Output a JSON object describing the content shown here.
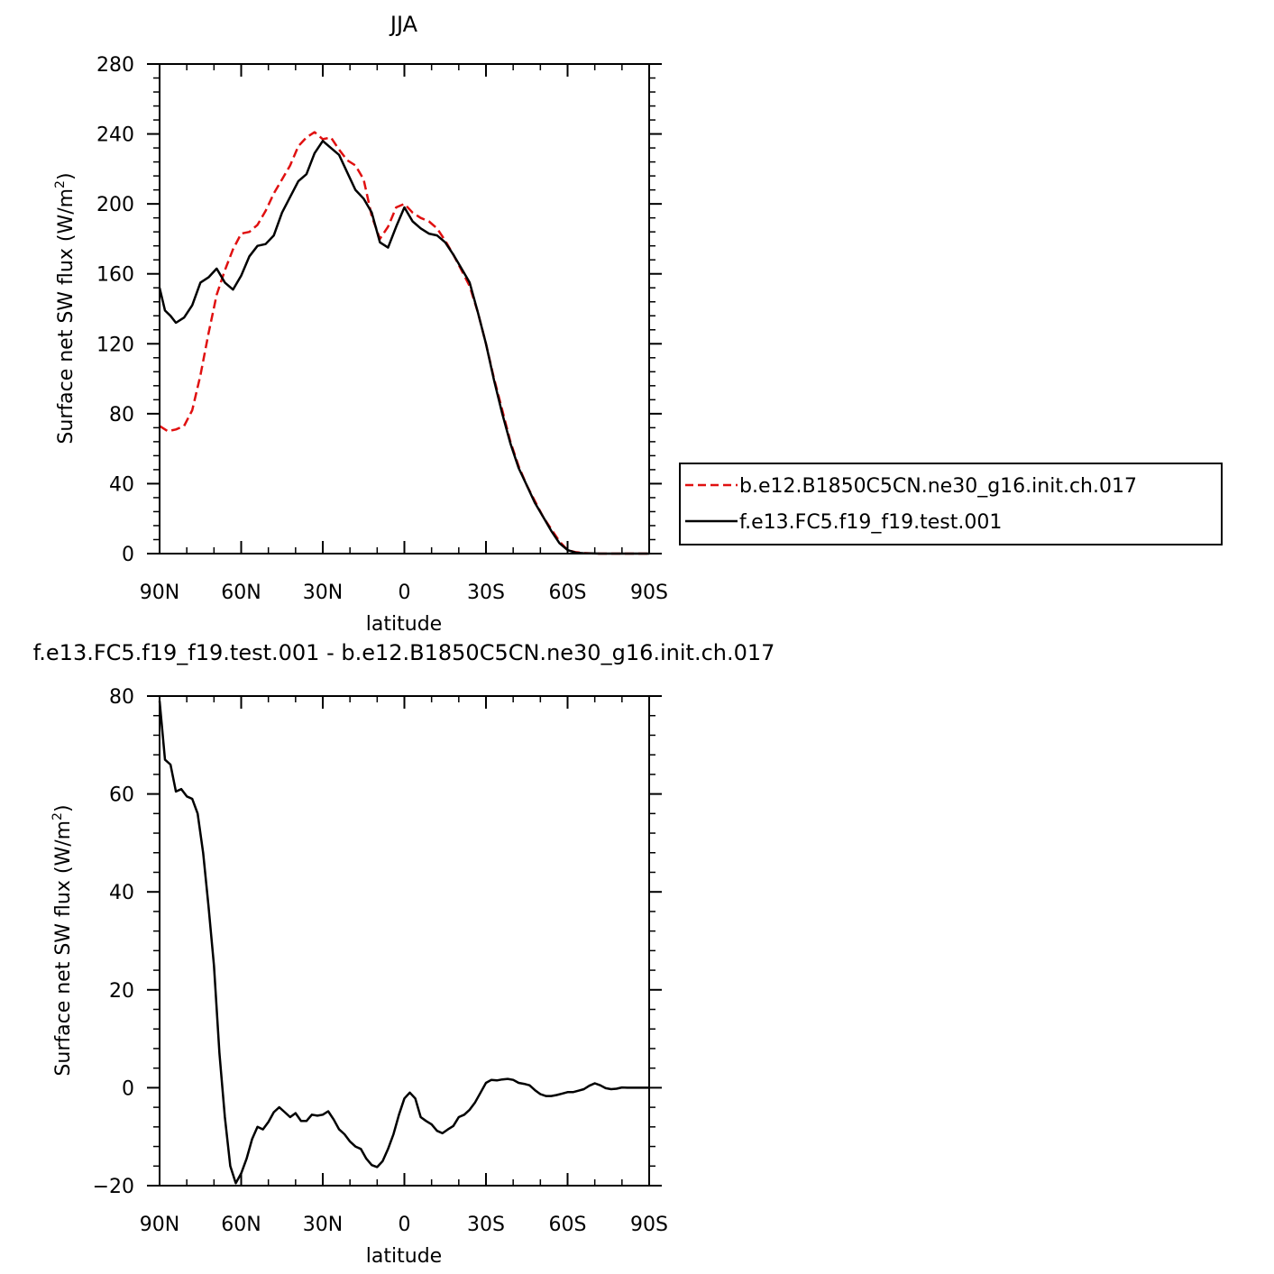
{
  "chart_data": [
    {
      "type": "line",
      "title": "JJA",
      "xlabel": "latitude",
      "ylabel_main": "Surface net SW flux (W/m",
      "ylabel_sup": "2",
      "ylabel_close": ")",
      "xlim": [
        -90,
        90
      ],
      "ylim": [
        0,
        280
      ],
      "x_ticks": [
        -90,
        -60,
        -30,
        0,
        30,
        60,
        90
      ],
      "x_tick_labels": [
        "90N",
        "60N",
        "30N",
        "0",
        "30S",
        "60S",
        "90S"
      ],
      "y_ticks": [
        0,
        40,
        80,
        120,
        160,
        200,
        240,
        280
      ],
      "y_tick_labels": [
        "0",
        "40",
        "80",
        "120",
        "160",
        "200",
        "240",
        "280"
      ],
      "grid": false,
      "legend_position": "right",
      "series": [
        {
          "name": "b.e12.B1850C5CN.ne30_g16.init.ch.017",
          "color": "#e01010",
          "style": "dashed",
          "x": [
            -90,
            -87,
            -84,
            -81,
            -78,
            -75,
            -72,
            -69,
            -66,
            -63,
            -60,
            -57,
            -54,
            -51,
            -48,
            -45,
            -42,
            -39,
            -36,
            -33,
            -30,
            -27,
            -24,
            -21,
            -18,
            -15,
            -12,
            -9,
            -6,
            -3,
            0,
            3,
            6,
            9,
            12,
            15,
            18,
            21,
            24,
            27,
            30,
            33,
            36,
            39,
            42,
            45,
            48,
            51,
            54,
            57,
            60,
            63,
            66,
            69,
            72,
            75,
            78,
            81,
            84,
            87,
            90
          ],
          "y": [
            73,
            70,
            71,
            73,
            82,
            102,
            126,
            148,
            162,
            174,
            183,
            184,
            188,
            196,
            206,
            214,
            222,
            233,
            238,
            241,
            237,
            238,
            231,
            225,
            222,
            214,
            193,
            180,
            187,
            198,
            200,
            195,
            192,
            190,
            186,
            179,
            171,
            162,
            153,
            138,
            120,
            100,
            82,
            64,
            50,
            39,
            30,
            21,
            14,
            7,
            2,
            0.8,
            0.3,
            0.1,
            0,
            0,
            0,
            0,
            0,
            0,
            0
          ]
        },
        {
          "name": "f.e13.FC5.f19_f19.test.001",
          "color": "#000000",
          "style": "solid",
          "x": [
            -90,
            -88,
            -86,
            -84,
            -81,
            -78,
            -75,
            -72,
            -69,
            -66,
            -63,
            -60,
            -57,
            -54,
            -51,
            -48,
            -45,
            -42,
            -39,
            -36,
            -33,
            -30,
            -27,
            -24,
            -21,
            -18,
            -15,
            -12,
            -9,
            -6,
            -3,
            0,
            3,
            6,
            9,
            12,
            15,
            18,
            21,
            24,
            27,
            30,
            33,
            36,
            39,
            42,
            45,
            48,
            51,
            54,
            57,
            60,
            63,
            66,
            69,
            72,
            75,
            78,
            81,
            84,
            87,
            90
          ],
          "y": [
            152,
            139,
            136,
            132,
            135,
            142,
            155,
            158,
            163,
            155,
            151,
            159,
            170,
            176,
            177,
            182,
            195,
            204,
            213,
            217,
            229,
            236,
            232,
            228,
            218,
            208,
            203,
            195,
            178,
            175,
            187,
            198,
            190,
            186,
            183,
            182,
            178,
            171,
            163,
            155,
            138,
            120,
            99,
            80,
            63,
            49,
            39,
            29,
            21,
            13,
            6,
            2,
            0.5,
            0.2,
            0.1,
            0,
            0,
            0,
            0,
            0,
            0,
            0
          ]
        }
      ]
    },
    {
      "type": "line",
      "title": "f.e13.FC5.f19_f19.test.001 - b.e12.B1850C5CN.ne30_g16.init.ch.017",
      "xlabel": "latitude",
      "ylabel_main": "Surface net SW flux (W/m",
      "ylabel_sup": "2",
      "ylabel_close": ")",
      "xlim": [
        -90,
        90
      ],
      "ylim": [
        -20,
        80
      ],
      "x_ticks": [
        -90,
        -60,
        -30,
        0,
        30,
        60,
        90
      ],
      "x_tick_labels": [
        "90N",
        "60N",
        "30N",
        "0",
        "30S",
        "60S",
        "90S"
      ],
      "y_ticks": [
        -20,
        0,
        20,
        40,
        60,
        80
      ],
      "y_tick_labels": [
        "−20",
        "0",
        "20",
        "40",
        "60",
        "80"
      ],
      "grid": false,
      "series": [
        {
          "color": "#000000",
          "style": "solid",
          "x": [
            -90,
            -88,
            -86,
            -84,
            -82,
            -80,
            -78,
            -76,
            -74,
            -72,
            -70,
            -68,
            -66,
            -64,
            -62,
            -60,
            -58,
            -56,
            -54,
            -52,
            -50,
            -48,
            -46,
            -44,
            -42,
            -40,
            -38,
            -36,
            -34,
            -32,
            -30,
            -28,
            -26,
            -24,
            -22,
            -20,
            -18,
            -16,
            -14,
            -12,
            -10,
            -8,
            -6,
            -4,
            -2,
            0,
            2,
            4,
            6,
            8,
            10,
            12,
            14,
            16,
            18,
            20,
            22,
            24,
            26,
            28,
            30,
            32,
            34,
            36,
            38,
            40,
            42,
            44,
            46,
            48,
            50,
            52,
            54,
            56,
            58,
            60,
            62,
            64,
            66,
            68,
            70,
            72,
            74,
            76,
            78,
            80,
            82,
            84,
            86,
            88,
            90
          ],
          "y": [
            79,
            67,
            66,
            60.5,
            61,
            59.5,
            59,
            56,
            48,
            37,
            25,
            7,
            -6,
            -16,
            -19.5,
            -17.5,
            -14.5,
            -10.5,
            -8,
            -8.5,
            -7,
            -5,
            -4,
            -5,
            -6,
            -5.2,
            -6.8,
            -6.8,
            -5.5,
            -5.7,
            -5.5,
            -4.8,
            -6.5,
            -8.5,
            -9.5,
            -11,
            -12,
            -12.5,
            -14.5,
            -15.8,
            -16.2,
            -15,
            -12.5,
            -9.5,
            -5.5,
            -2.2,
            -1,
            -2.2,
            -6,
            -6.8,
            -7.5,
            -8.8,
            -9.3,
            -8.5,
            -7.8,
            -6,
            -5.5,
            -4.5,
            -3,
            -1,
            1,
            1.6,
            1.5,
            1.7,
            1.8,
            1.6,
            1,
            0.8,
            0.5,
            -0.5,
            -1.3,
            -1.7,
            -1.7,
            -1.5,
            -1.2,
            -0.9,
            -0.9,
            -0.6,
            -0.3,
            0.4,
            0.9,
            0.5,
            -0.1,
            -0.3,
            -0.2,
            0.05,
            0,
            0,
            0,
            0,
            0
          ]
        }
      ]
    }
  ]
}
